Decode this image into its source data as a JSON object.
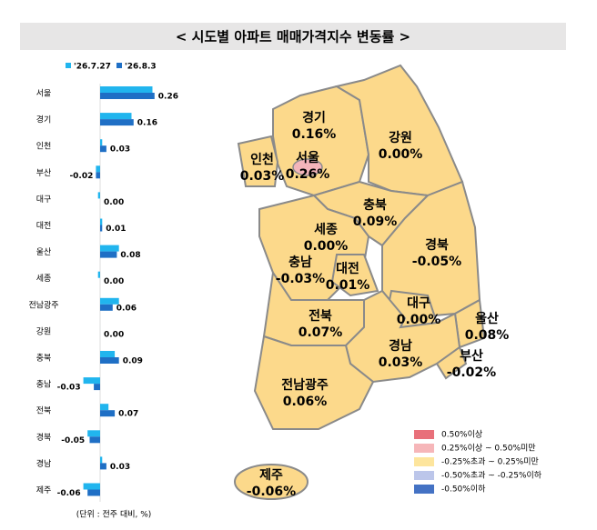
{
  "title": "< 시도별 아파트 매매가격지수 변동률 >",
  "unit_note": "(단위 : 전주 대비, %)",
  "chart_data": [
    {
      "type": "hbar",
      "categories": [
        "서울",
        "경기",
        "인천",
        "부산",
        "대구",
        "대전",
        "울산",
        "세종",
        "전남광주",
        "강원",
        "충북",
        "충남",
        "전북",
        "경북",
        "경남",
        "제주"
      ],
      "xlim": [
        -0.1,
        0.3
      ],
      "series": [
        {
          "name": "'26.7.27",
          "color": "#21b5ee",
          "values": [
            0.25,
            0.15,
            0.01,
            -0.02,
            -0.01,
            0.01,
            0.09,
            -0.01,
            0.09,
            0,
            0.07,
            -0.08,
            0.04,
            -0.06,
            0.01,
            -0.08
          ]
        },
        {
          "name": "'26.8.3",
          "color": "#1f6fc5",
          "values": [
            0.26,
            0.16,
            0.03,
            -0.02,
            0,
            0.01,
            0.08,
            0,
            0.06,
            0,
            0.09,
            -0.03,
            0.07,
            -0.05,
            0.03,
            -0.06
          ],
          "value_labels": [
            "0.26",
            "0.16",
            "0.03",
            "-0.02",
            "0.00",
            "0.01",
            "0.08",
            "0.00",
            "0.06",
            "0.00",
            "0.09",
            "-0.03",
            "0.07",
            "-0.05",
            "0.03",
            "-0.06"
          ]
        }
      ]
    },
    {
      "type": "map",
      "categories": [
        "경기",
        "서울",
        "인천",
        "강원",
        "충북",
        "세종",
        "충남",
        "대전",
        "경북",
        "대구",
        "울산",
        "전북",
        "경남",
        "부산",
        "전남광주",
        "제주"
      ],
      "values": [
        0.16,
        0.26,
        0.03,
        0,
        0.09,
        0,
        -0.03,
        0.01,
        -0.05,
        0,
        0.08,
        0.07,
        0.03,
        -0.02,
        0.06,
        -0.06
      ],
      "value_labels": [
        "0.16%",
        "0.26%",
        "0.03%",
        "0.00%",
        "0.09%",
        "0.00%",
        "-0.03%",
        "0.01%",
        "-0.05%",
        "0.00%",
        "0.08%",
        "0.07%",
        "0.03%",
        "-0.02%",
        "0.06%",
        "-0.06%"
      ],
      "colors": [
        "#fcd98b",
        "#f4b5bb",
        "#fcd98b",
        "#fcd98b",
        "#fcd98b",
        "#fcd98b",
        "#fcd98b",
        "#fcd98b",
        "#fcd98b",
        "#fcd98b",
        "#fcd98b",
        "#fcd98b",
        "#fcd98b",
        "#fcd98b",
        "#fcd98b",
        "#fcd98b"
      ],
      "legend": [
        {
          "label": "0.50%이상",
          "color": "#e8707a"
        },
        {
          "label": "0.25%이상 ~ 0.50%미만",
          "color": "#f6b6b9"
        },
        {
          "label": "-0.25%초과 ~ 0.25%미만",
          "color": "#fde59d"
        },
        {
          "label": "-0.50%초과 ~ -0.25%이하",
          "color": "#bcc6ea"
        },
        {
          "label": "-0.50%이하",
          "color": "#4472c4"
        }
      ]
    }
  ]
}
